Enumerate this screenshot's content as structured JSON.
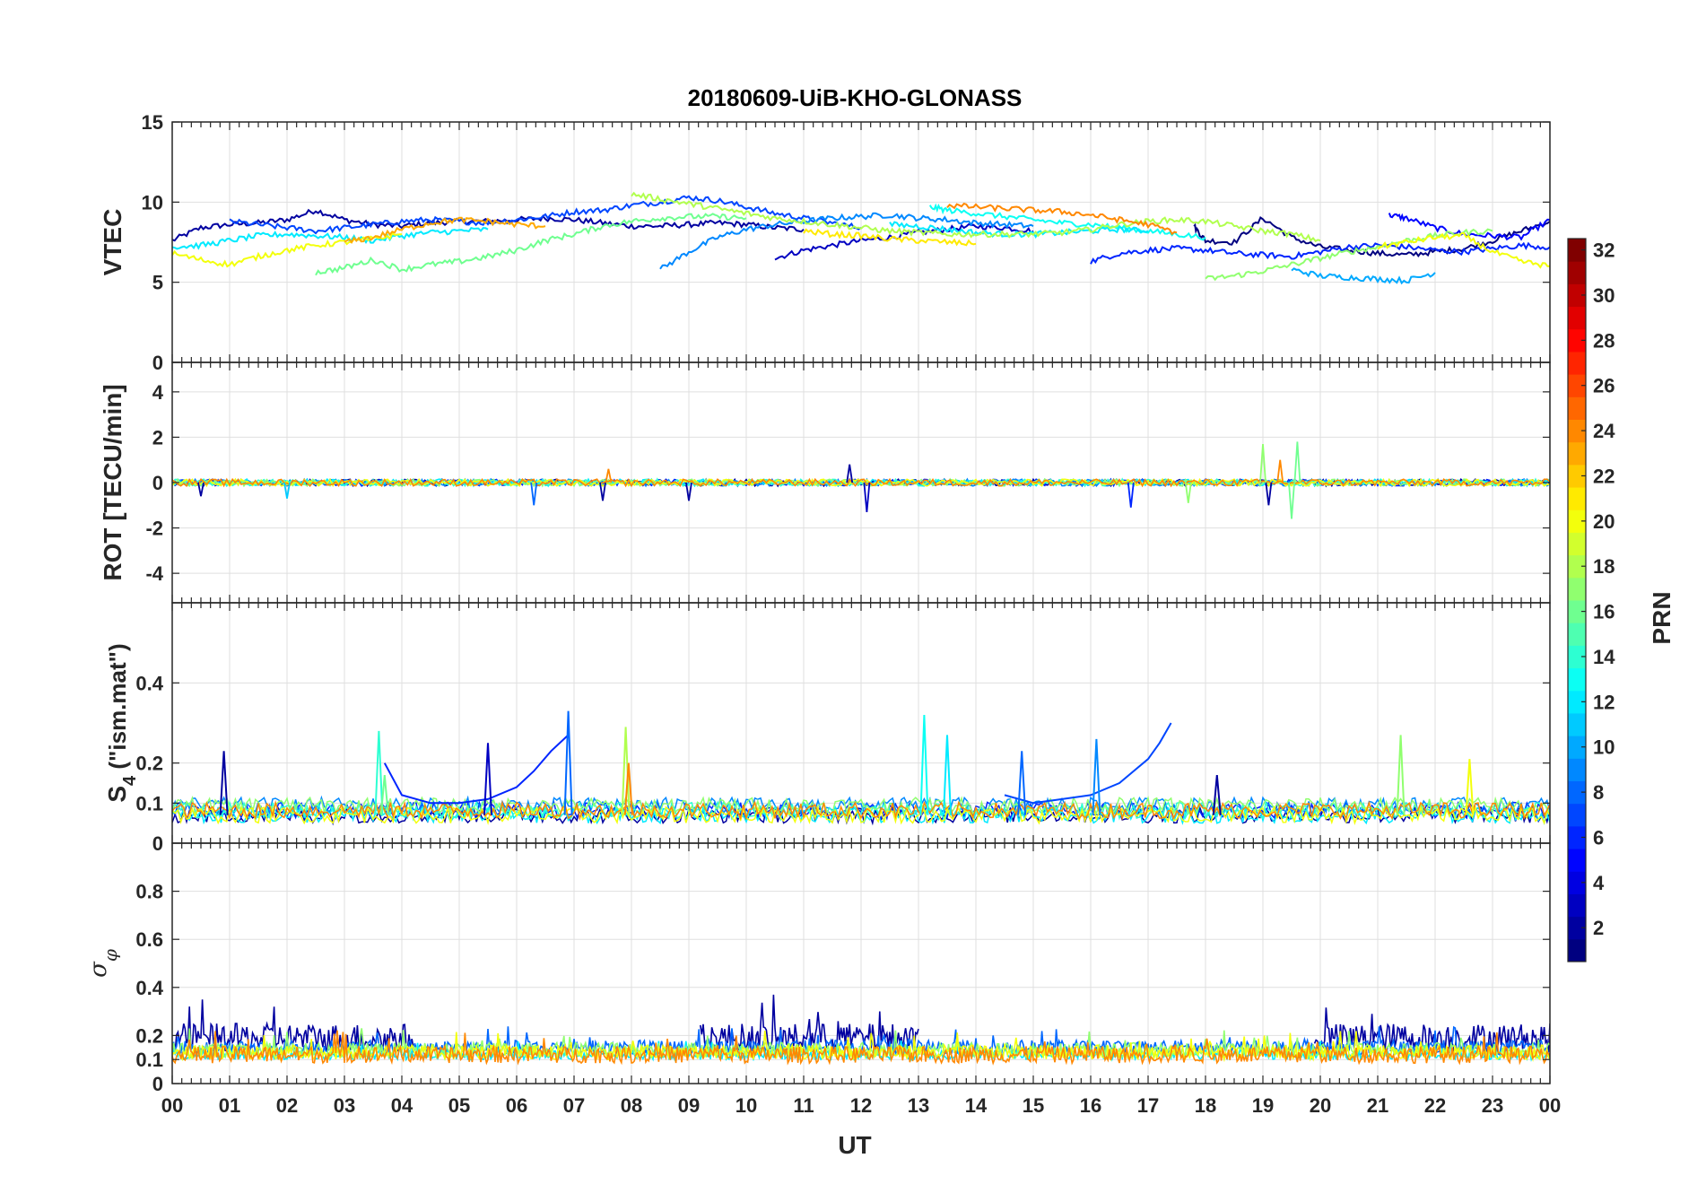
{
  "chart_data": {
    "title": "20180609-UiB-KHO-GLONASS",
    "type": "line",
    "xlabel": "UT",
    "x_ticks": [
      "00",
      "01",
      "02",
      "03",
      "04",
      "05",
      "06",
      "07",
      "08",
      "09",
      "10",
      "11",
      "12",
      "13",
      "14",
      "15",
      "16",
      "17",
      "18",
      "19",
      "20",
      "21",
      "22",
      "23",
      "00"
    ],
    "xlim": [
      0,
      24
    ],
    "colorbar": {
      "label": "PRN",
      "range": [
        1,
        32
      ],
      "ticks": [
        "2",
        "4",
        "6",
        "8",
        "10",
        "12",
        "14",
        "16",
        "18",
        "20",
        "22",
        "24",
        "26",
        "28",
        "30",
        "32"
      ],
      "colormap": "jet"
    },
    "panels": [
      {
        "id": "vtec",
        "ylabel": "VTEC",
        "ylim": [
          0,
          15
        ],
        "yticks": [
          "0",
          "5",
          "10",
          "15"
        ],
        "series": [
          {
            "prn": 2,
            "x": [
              0,
              0.5,
              1,
              1.5,
              2,
              2.5,
              3,
              3.5,
              4,
              4.5,
              5,
              5.5,
              6,
              6.5,
              7,
              7.5,
              8,
              8.5,
              9,
              9.5,
              10,
              10.5,
              11
            ],
            "y": [
              7.6,
              8.4,
              8.6,
              8.7,
              8.9,
              9.5,
              8.9,
              8.6,
              8.5,
              8.7,
              8.8,
              8.8,
              8.9,
              9.0,
              8.9,
              8.7,
              8.5,
              8.5,
              8.6,
              8.7,
              8.6,
              8.4,
              8.3
            ]
          },
          {
            "prn": 3,
            "x": [
              10.5,
              11,
              11.5,
              12,
              12.5,
              13,
              13.5,
              14,
              14.5,
              15
            ],
            "y": [
              6.5,
              7.0,
              7.3,
              7.6,
              7.8,
              8.1,
              8.3,
              8.5,
              8.4,
              8.2
            ]
          },
          {
            "prn": 1,
            "x": [
              17.8,
              18,
              18.5,
              19,
              19.5,
              20,
              20.5,
              21,
              21.5,
              22,
              22.5,
              23,
              23.5,
              24
            ],
            "y": [
              8.5,
              7.6,
              7.5,
              9.0,
              7.8,
              7.2,
              7.0,
              6.8,
              6.7,
              6.9,
              7.1,
              7.6,
              8.2,
              8.8
            ]
          },
          {
            "prn": 5,
            "x": [
              21.2,
              21.5,
              22,
              22.5,
              23,
              23.5,
              24
            ],
            "y": [
              9.2,
              9.0,
              8.4,
              8.0,
              7.9,
              7.8,
              8.9
            ]
          },
          {
            "prn": 7,
            "x": [
              1,
              1.5,
              2,
              2.5,
              3,
              3.5,
              4,
              4.5,
              5,
              5.5,
              6,
              6.5,
              7,
              7.5,
              8,
              8.5,
              9,
              9.5,
              10,
              10.5,
              11,
              11.5,
              12
            ],
            "y": [
              8.8,
              8.6,
              8.4,
              8.2,
              8.4,
              8.6,
              8.8,
              8.9,
              8.8,
              8.7,
              8.9,
              9.1,
              9.4,
              9.5,
              9.8,
              10.0,
              10.3,
              10.1,
              9.7,
              9.3,
              9.0,
              8.7,
              8.4
            ]
          },
          {
            "prn": 6,
            "x": [
              16,
              16.5,
              17,
              17.5,
              18,
              18.5,
              19,
              19.5,
              20,
              20.5,
              21,
              21.5,
              22,
              22.5,
              23,
              23.5,
              24
            ],
            "y": [
              6.3,
              6.8,
              7.0,
              7.1,
              7.0,
              6.8,
              6.7,
              6.6,
              6.9,
              7.2,
              7.3,
              7.2,
              7.0,
              6.9,
              7.1,
              7.3,
              7.2
            ]
          },
          {
            "prn": 9,
            "x": [
              8.5,
              9,
              9.5,
              10,
              10.5,
              11,
              11.5,
              12,
              12.5,
              13,
              13.5,
              14,
              14.5,
              15
            ],
            "y": [
              5.8,
              6.9,
              7.8,
              8.3,
              8.6,
              8.8,
              9.0,
              9.1,
              9.2,
              9.0,
              8.9,
              8.7,
              8.6,
              8.5
            ]
          },
          {
            "prn": 10,
            "x": [
              19.5,
              20,
              20.5,
              21,
              21.5,
              22
            ],
            "y": [
              5.8,
              5.4,
              5.3,
              5.2,
              5.1,
              5.6
            ]
          },
          {
            "prn": 12,
            "x": [
              0,
              0.5,
              1,
              1.5,
              2,
              2.5,
              3,
              3.5,
              4,
              4.5,
              5,
              5.5
            ],
            "y": [
              7.2,
              7.3,
              7.6,
              7.9,
              8.0,
              7.9,
              7.8,
              7.6,
              7.9,
              8.1,
              8.2,
              8.3
            ]
          },
          {
            "prn": 13,
            "x": [
              13.2,
              13.5,
              14,
              14.5,
              15,
              15.5,
              16,
              16.5,
              17,
              17.5,
              18
            ],
            "y": [
              9.7,
              9.5,
              9.3,
              9.1,
              8.9,
              8.7,
              8.6,
              8.4,
              8.2,
              8.0,
              7.8
            ]
          },
          {
            "prn": 12,
            "x": [
              12.5,
              13,
              13.5,
              14,
              14.5,
              15,
              15.5,
              16,
              16.5,
              17
            ],
            "y": [
              8.6,
              8.5,
              8.3,
              8.1,
              8.0,
              8.0,
              8.1,
              8.2,
              8.3,
              8.2
            ]
          },
          {
            "prn": 16,
            "x": [
              2.5,
              3,
              3.5,
              4,
              4.5,
              5,
              5.5,
              6,
              6.5,
              7,
              7.5,
              8,
              8.5,
              9,
              9.5,
              10
            ],
            "y": [
              5.6,
              5.9,
              6.4,
              5.8,
              6.1,
              6.3,
              6.6,
              7.0,
              7.6,
              8.0,
              8.5,
              8.8,
              9.0,
              9.1,
              9.1,
              9.0
            ]
          },
          {
            "prn": 17,
            "x": [
              18,
              18.5,
              19,
              19.5,
              20,
              20.5,
              21,
              21.5,
              22,
              22.5,
              23
            ],
            "y": [
              5.2,
              5.4,
              5.7,
              6.1,
              6.5,
              6.9,
              7.2,
              7.6,
              7.9,
              8.1,
              8.2
            ]
          },
          {
            "prn": 18,
            "x": [
              8,
              8.5,
              9,
              9.5,
              10,
              10.5,
              11,
              11.5,
              12,
              12.5,
              13,
              13.5,
              14,
              14.5,
              15,
              15.5,
              16,
              16.5,
              17,
              17.5,
              18,
              18.5,
              19,
              19.5,
              20
            ],
            "y": [
              10.5,
              10.2,
              9.9,
              9.6,
              9.3,
              9.0,
              8.8,
              8.6,
              8.4,
              8.2,
              8.1,
              8.0,
              8.0,
              8.0,
              8.0,
              8.1,
              8.3,
              8.6,
              8.8,
              8.9,
              8.8,
              8.5,
              8.2,
              8.0,
              7.6
            ]
          },
          {
            "prn": 20,
            "x": [
              0,
              0.5,
              1,
              1.5,
              2,
              2.5,
              3,
              3.5,
              4
            ],
            "y": [
              6.8,
              6.4,
              6.1,
              6.6,
              7.0,
              7.3,
              7.5,
              7.7,
              8.0
            ]
          },
          {
            "prn": 21,
            "x": [
              11,
              11.5,
              12,
              12.5,
              13,
              13.5,
              14
            ],
            "y": [
              8.2,
              8.0,
              7.9,
              7.7,
              7.6,
              7.5,
              7.4
            ]
          },
          {
            "prn": 20,
            "x": [
              21,
              21.5,
              22,
              22.5,
              23,
              23.5,
              24
            ],
            "y": [
              7.2,
              7.5,
              7.8,
              7.9,
              6.9,
              6.3,
              6.0
            ]
          },
          {
            "prn": 23,
            "x": [
              3,
              3.5,
              4,
              4.5,
              5,
              5.5,
              6,
              6.5
            ],
            "y": [
              7.5,
              7.8,
              8.3,
              8.7,
              8.9,
              8.8,
              8.6,
              8.5
            ]
          },
          {
            "prn": 24,
            "x": [
              13.5,
              14,
              14.5,
              15,
              15.5,
              16,
              16.5,
              17,
              17.5
            ],
            "y": [
              9.8,
              9.7,
              9.6,
              9.5,
              9.4,
              9.2,
              8.9,
              8.6,
              8.1
            ]
          }
        ]
      },
      {
        "id": "rot",
        "ylabel": "ROT [TECU/min]",
        "ylim": [
          -5.3,
          5.3
        ],
        "yticks": [
          "-4",
          "-2",
          "0",
          "2",
          "4"
        ],
        "noise": {
          "base": 0.15,
          "spikes": [
            {
              "x": 0.5,
              "y": -0.6,
              "prn": 2
            },
            {
              "x": 2.0,
              "y": -0.7,
              "prn": 11
            },
            {
              "x": 6.3,
              "y": -1.0,
              "prn": 8
            },
            {
              "x": 7.5,
              "y": -0.8,
              "prn": 2
            },
            {
              "x": 7.6,
              "y": 0.6,
              "prn": 24
            },
            {
              "x": 9.0,
              "y": -0.8,
              "prn": 2
            },
            {
              "x": 11.8,
              "y": 0.8,
              "prn": 2
            },
            {
              "x": 12.1,
              "y": -1.3,
              "prn": 3
            },
            {
              "x": 16.7,
              "y": -1.1,
              "prn": 6
            },
            {
              "x": 17.7,
              "y": -0.9,
              "prn": 17
            },
            {
              "x": 19.0,
              "y": 1.7,
              "prn": 17
            },
            {
              "x": 19.1,
              "y": -1.0,
              "prn": 2
            },
            {
              "x": 19.3,
              "y": 1.0,
              "prn": 24
            },
            {
              "x": 19.5,
              "y": -1.6,
              "prn": 16
            },
            {
              "x": 19.6,
              "y": 1.8,
              "prn": 16
            }
          ]
        }
      },
      {
        "id": "s4",
        "ylabel": "S4 (\"ism.mat\")",
        "ylabel_main": "S",
        "ylabel_sub": "4",
        "ylabel_rest": " (\"ism.mat\")",
        "ylim": [
          0,
          0.6
        ],
        "yticks": [
          "0",
          "0.1",
          "0.2",
          "0.4"
        ],
        "baseline": 0.05,
        "spikes": [
          {
            "x": 0.9,
            "y": 0.23,
            "prn": 2
          },
          {
            "x": 3.6,
            "y": 0.28,
            "prn": 14
          },
          {
            "x": 3.7,
            "y": 0.17,
            "prn": 16
          },
          {
            "x": 5.5,
            "y": 0.25,
            "prn": 3
          },
          {
            "x": 6.9,
            "y": 0.33,
            "prn": 8
          },
          {
            "x": 7.9,
            "y": 0.29,
            "prn": 18
          },
          {
            "x": 7.95,
            "y": 0.2,
            "prn": 24
          },
          {
            "x": 13.1,
            "y": 0.32,
            "prn": 13
          },
          {
            "x": 13.5,
            "y": 0.27,
            "prn": 12
          },
          {
            "x": 14.8,
            "y": 0.23,
            "prn": 8
          },
          {
            "x": 16.1,
            "y": 0.26,
            "prn": 9
          },
          {
            "x": 18.2,
            "y": 0.17,
            "prn": 2
          },
          {
            "x": 21.4,
            "y": 0.27,
            "prn": 17
          },
          {
            "x": 22.6,
            "y": 0.21,
            "prn": 20
          }
        ],
        "arcs": [
          {
            "prn": 6,
            "x": [
              3.7,
              4,
              4.5,
              5,
              5.5,
              6,
              6.3,
              6.6,
              6.9
            ],
            "y": [
              0.2,
              0.12,
              0.1,
              0.1,
              0.11,
              0.14,
              0.18,
              0.23,
              0.27
            ]
          },
          {
            "prn": 7,
            "x": [
              14.5,
              15,
              15.5,
              16,
              16.5,
              17,
              17.2,
              17.4
            ],
            "y": [
              0.12,
              0.1,
              0.11,
              0.12,
              0.15,
              0.21,
              0.25,
              0.3
            ]
          }
        ]
      },
      {
        "id": "sigma_phi",
        "ylabel": "σφ",
        "ylim": [
          0,
          1
        ],
        "yticks": [
          "0",
          "0.1",
          "0.2",
          "0.4",
          "0.6",
          "0.8"
        ],
        "bands": [
          {
            "prn": 2,
            "center": 0.19,
            "amp": 0.06,
            "ranges": [
              [
                0,
                4.2
              ],
              [
                9.2,
                13
              ],
              [
                19.9,
                24
              ]
            ]
          },
          {
            "prn": 8,
            "center": 0.15,
            "amp": 0.03,
            "ranges": [
              [
                0,
                24
              ]
            ]
          },
          {
            "prn": 12,
            "center": 0.12,
            "amp": 0.02,
            "ranges": [
              [
                0,
                24
              ]
            ]
          },
          {
            "prn": 17,
            "center": 0.14,
            "amp": 0.03,
            "ranges": [
              [
                0,
                24
              ]
            ]
          },
          {
            "prn": 20,
            "center": 0.13,
            "amp": 0.03,
            "ranges": [
              [
                0,
                24
              ]
            ]
          },
          {
            "prn": 24,
            "center": 0.12,
            "amp": 0.035,
            "ranges": [
              [
                0,
                24
              ]
            ]
          }
        ]
      }
    ]
  }
}
